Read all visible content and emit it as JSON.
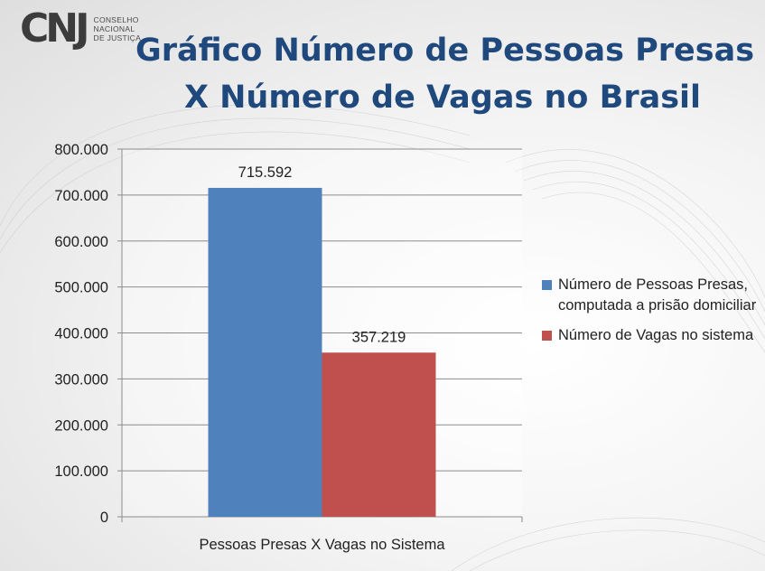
{
  "logo": {
    "mark": "CNJ",
    "lines": [
      "CONSELHO",
      "NACIONAL",
      "DE JUSTIÇA"
    ]
  },
  "title_line1": "Gráfico Número de Pessoas Presas",
  "title_line2": "X Número de Vagas no Brasil",
  "chart_data": {
    "type": "bar",
    "title": "Gráfico Número de Pessoas Presas X Número de Vagas no Brasil",
    "categories": [
      "Pessoas Presas X Vagas no Sistema"
    ],
    "series": [
      {
        "name": "Número de Pessoas Presas, computada a prisão domiciliar",
        "values": [
          715592
        ],
        "label": "715.592",
        "color": "#4f81bd"
      },
      {
        "name": "Número de Vagas no sistema",
        "values": [
          357219
        ],
        "label": "357.219",
        "color": "#c0504d"
      }
    ],
    "yticks": [
      "0",
      "100.000",
      "200.000",
      "300.000",
      "400.000",
      "500.000",
      "600.000",
      "700.000",
      "800.000"
    ],
    "ylim": [
      0,
      800000
    ],
    "grid": true,
    "legend_position": "right"
  },
  "legend": [
    {
      "label": "Número de Pessoas Presas, computada a prisão domiciliar",
      "color": "#4f81bd"
    },
    {
      "label": "Número de Vagas no sistema",
      "color": "#c0504d"
    }
  ]
}
